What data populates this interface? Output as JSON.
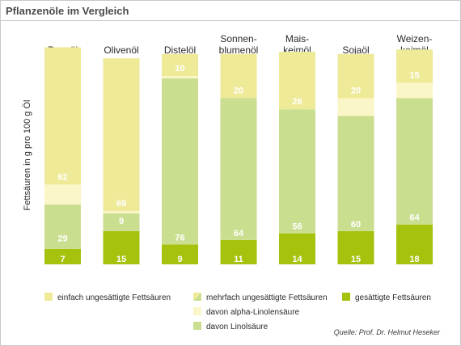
{
  "title": "Pflanzenöle im Vergleich",
  "source": "Quelle: Prof. Dr. Helmut Heseker",
  "colors": {
    "mono": "#eeea98",
    "alpha": "#fbf6c7",
    "linol": "#cade8f",
    "sat": "#a6c20d",
    "text_dark": "#2a2a2a",
    "value_text": "#ffffff"
  },
  "chart_data": {
    "type": "bar",
    "stacked": true,
    "ylabel": "Fettsäuren in g pro 100 g Öl",
    "ylim": [
      0,
      100
    ],
    "categories": [
      [
        "Rapsöl"
      ],
      [
        "Olivenöl"
      ],
      [
        "Distelöl"
      ],
      [
        "Sonnen-",
        "blumenöl"
      ],
      [
        "Mais-",
        "keimöl"
      ],
      [
        "Sojaöl"
      ],
      [
        "Weizen-",
        "keimöl"
      ]
    ],
    "series": [
      {
        "name": "gesättigte Fettsäuren",
        "values": [
          7,
          15,
          9,
          11,
          14,
          15,
          18
        ]
      },
      {
        "name": "davon Linolsäure",
        "values": [
          20,
          8,
          75,
          64,
          56,
          52,
          57
        ]
      },
      {
        "name": "davon alpha-Linolensäure",
        "values": [
          9,
          1,
          1,
          0,
          0,
          8,
          7
        ]
      },
      {
        "name": "einfach ungesättigte Fettsäuren",
        "values": [
          62,
          69,
          10,
          20,
          26,
          20,
          15
        ]
      }
    ],
    "value_labels": {
      "saturated": [
        7,
        15,
        9,
        11,
        14,
        15,
        18
      ],
      "polyunsaturated": [
        29,
        9,
        76,
        64,
        56,
        60,
        64
      ],
      "monounsaturated": [
        62,
        69,
        10,
        20,
        26,
        20,
        15
      ]
    },
    "legend": [
      {
        "label": "einfach ungesättigte Fettsäuren",
        "swatch": "mono"
      },
      {
        "label": "mehrfach ungesättigte Fettsäuren",
        "swatch": "poly"
      },
      {
        "label": "gesättigte Fettsäuren",
        "swatch": "sat"
      },
      {
        "label": "davon alpha-Linolensäure",
        "swatch": "alpha"
      },
      {
        "label": "davon Linolsäure",
        "swatch": "linol"
      }
    ]
  }
}
